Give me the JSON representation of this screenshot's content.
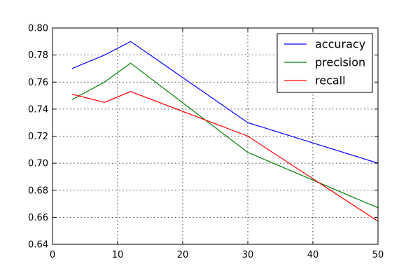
{
  "chart_data": {
    "type": "line",
    "title": "",
    "xlabel": "",
    "ylabel": "",
    "xlim": [
      0,
      50
    ],
    "ylim": [
      0.64,
      0.8
    ],
    "xticks": [
      0,
      10,
      20,
      30,
      40,
      50
    ],
    "yticks": [
      0.64,
      0.66,
      0.68,
      0.7,
      0.72,
      0.74,
      0.76,
      0.78,
      0.8
    ],
    "xtick_labels": [
      "0",
      "10",
      "20",
      "30",
      "40",
      "50"
    ],
    "ytick_labels": [
      "0.64",
      "0.66",
      "0.68",
      "0.70",
      "0.72",
      "0.74",
      "0.76",
      "0.78",
      "0.80"
    ],
    "grid": true,
    "legend_position": "top-right",
    "series": [
      {
        "name": "accuracy",
        "color": "#0000ff",
        "x": [
          3,
          8,
          12,
          30,
          50
        ],
        "y": [
          0.77,
          0.78,
          0.79,
          0.73,
          0.7
        ]
      },
      {
        "name": "precision",
        "color": "#008000",
        "x": [
          3,
          8,
          12,
          30,
          50
        ],
        "y": [
          0.747,
          0.76,
          0.774,
          0.708,
          0.667
        ]
      },
      {
        "name": "recall",
        "color": "#ff0000",
        "x": [
          3,
          8,
          12,
          30,
          50
        ],
        "y": [
          0.751,
          0.745,
          0.753,
          0.72,
          0.657
        ]
      }
    ]
  }
}
